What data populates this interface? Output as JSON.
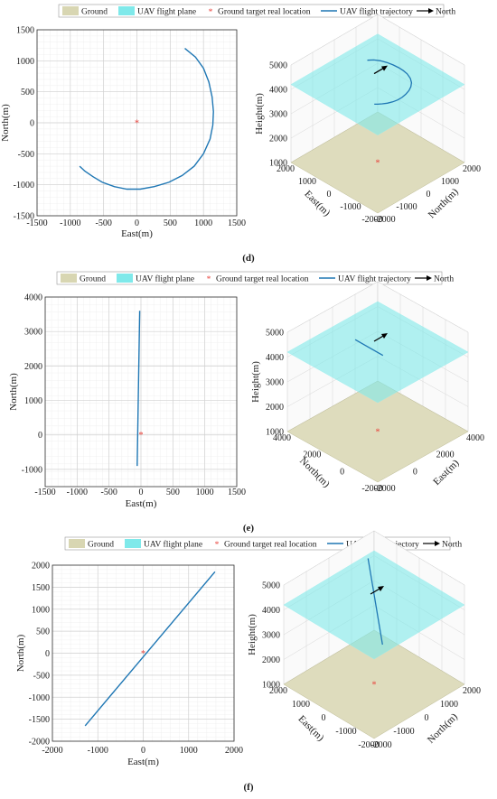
{
  "legend": {
    "ground": "Ground",
    "flight_plane": "UAV flight plane",
    "target": "Ground target real location",
    "trajectory": "UAV flight trajectory",
    "north": "North"
  },
  "colors": {
    "ground": "#d8d6b2",
    "plane": "#7fe9ea",
    "trajectory": "#1f77b4",
    "target": "#e8413a",
    "grid": "#d0d0d0",
    "north_arrow": "#000000"
  },
  "chart_data": [
    {
      "panel": "d",
      "type": "line",
      "view": "top-down",
      "xlabel": "East(m)",
      "ylabel": "North(m)",
      "xlim": [
        -1500,
        1500
      ],
      "ylim": [
        -1500,
        1500
      ],
      "xticks": [
        -1500,
        -1000,
        -500,
        0,
        500,
        1000,
        1500
      ],
      "yticks": [
        -1500,
        -1000,
        -500,
        0,
        500,
        1000,
        1500
      ],
      "grid": true,
      "target": [
        0,
        0
      ],
      "series": [
        {
          "x": [
            720,
            880,
            1000,
            1080,
            1130,
            1150,
            1140,
            1100,
            1000,
            860,
            680,
            480,
            260,
            50,
            -150,
            -340,
            -520,
            -660,
            -780,
            -860
          ],
          "y": [
            1200,
            1060,
            880,
            660,
            420,
            180,
            -40,
            -260,
            -500,
            -700,
            -850,
            -960,
            -1030,
            -1070,
            -1070,
            -1030,
            -960,
            -870,
            -780,
            -700
          ]
        }
      ],
      "view3d": {
        "zlabel": "Height(m)",
        "xlabel": "East(m)",
        "ylabel": "North(m)",
        "zticks": [
          1000,
          2000,
          3000,
          4000,
          5000
        ],
        "xticks": [
          "2000",
          "1000",
          "0",
          "-1000",
          "-2000"
        ],
        "yticks": [
          "-2000",
          "-1000",
          "0",
          "1000",
          "2000"
        ]
      }
    },
    {
      "panel": "e",
      "type": "line",
      "view": "top-down",
      "xlabel": "East(m)",
      "ylabel": "North(m)",
      "xlim": [
        -1500,
        1500
      ],
      "ylim": [
        -1500,
        4000
      ],
      "xticks": [
        -1500,
        -1000,
        -500,
        0,
        500,
        1000,
        1500
      ],
      "yticks": [
        -1000,
        0,
        1000,
        2000,
        3000,
        4000
      ],
      "grid": true,
      "target": [
        0,
        0
      ],
      "series": [
        {
          "x": [
            -20,
            -60
          ],
          "y": [
            3600,
            -900
          ]
        }
      ],
      "view3d": {
        "zlabel": "Height(m)",
        "xlabel": "North(m)",
        "ylabel": "East(m)",
        "zticks": [
          1000,
          2000,
          3000,
          4000,
          5000
        ],
        "xticks": [
          "4000",
          "2000",
          "0",
          "-2000"
        ],
        "yticks": [
          "-2000",
          "0",
          "2000",
          "4000"
        ]
      }
    },
    {
      "panel": "f",
      "type": "line",
      "view": "top-down",
      "xlabel": "East(m)",
      "ylabel": "North(m)",
      "xlim": [
        -2000,
        2000
      ],
      "ylim": [
        -2000,
        2000
      ],
      "xticks": [
        -2000,
        -1000,
        0,
        1000,
        2000
      ],
      "yticks": [
        -2000,
        -1500,
        -1000,
        -500,
        0,
        500,
        1000,
        1500,
        2000
      ],
      "grid": true,
      "target": [
        0,
        0
      ],
      "series": [
        {
          "x": [
            -1280,
            1580
          ],
          "y": [
            -1650,
            1850
          ]
        }
      ],
      "view3d": {
        "zlabel": "Height(m)",
        "xlabel": "East(m)",
        "ylabel": "North(m)",
        "zticks": [
          1000,
          2000,
          3000,
          4000,
          5000
        ],
        "xticks": [
          "2000",
          "1000",
          "0",
          "-1000",
          "-2000"
        ],
        "yticks": [
          "-2000",
          "-1000",
          "0",
          "1000",
          "2000"
        ]
      }
    }
  ],
  "panel_labels": [
    "(d)",
    "(e)",
    "(f)"
  ]
}
